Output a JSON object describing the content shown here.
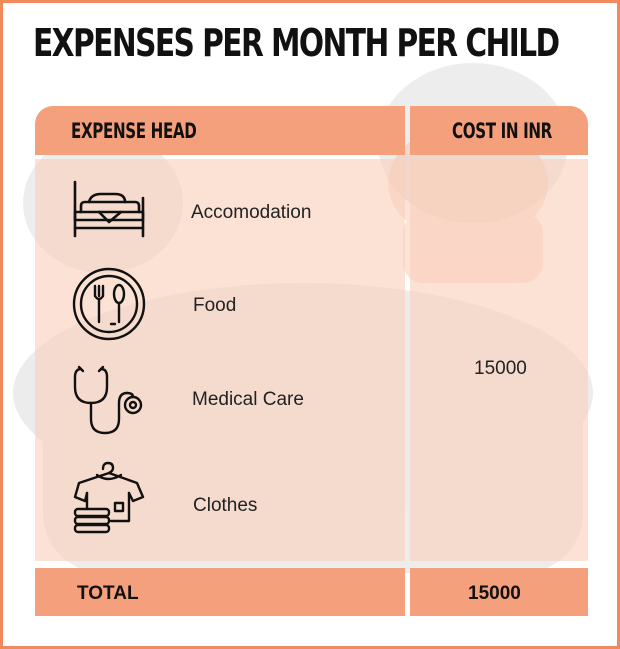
{
  "title": "EXPENSES PER MONTH PER CHILD",
  "table": {
    "headers": {
      "expense": "EXPENSE HEAD",
      "cost": "COST IN INR"
    },
    "rows": [
      {
        "label": "Accomodation",
        "icon": "bed-icon"
      },
      {
        "label": "Food",
        "icon": "plate-cutlery-icon"
      },
      {
        "label": "Medical Care",
        "icon": "stethoscope-icon"
      },
      {
        "label": "Clothes",
        "icon": "clothes-icon"
      }
    ],
    "cost_value": "15000",
    "total": {
      "label": "TOTAL",
      "value": "15000"
    }
  },
  "colors": {
    "accent": "#f08a5d",
    "header_fill": "#f5a07c",
    "body_fill": "#fbd5c5"
  }
}
